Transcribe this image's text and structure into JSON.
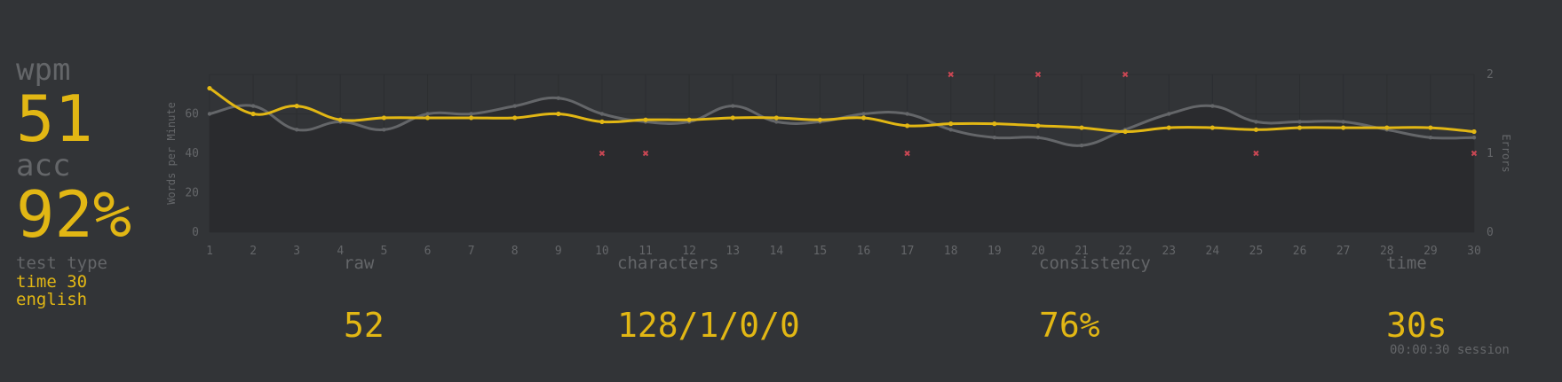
{
  "stats": {
    "wpm_label": "wpm",
    "wpm_value": "51",
    "acc_label": "acc",
    "acc_value": "92%"
  },
  "colors": {
    "background": "#323437",
    "sub": "#646669",
    "main": "#e2b714",
    "raw_line": "#646669",
    "error": "#ca4754"
  },
  "bottom": {
    "test_type_label": "test type",
    "test_type_line1": "time 30",
    "test_type_line2": "english",
    "raw_label": "raw",
    "raw_value": "52",
    "characters_label": "characters",
    "characters_value": "128/1/0/0",
    "consistency_label": "consistency",
    "consistency_value": "76%",
    "time_label": "time",
    "time_value": "30s",
    "session_value": "00:00:30 session"
  },
  "chart_data": {
    "type": "line",
    "x": [
      1,
      2,
      3,
      4,
      5,
      6,
      7,
      8,
      9,
      10,
      11,
      12,
      13,
      14,
      15,
      16,
      17,
      18,
      19,
      20,
      21,
      22,
      23,
      24,
      25,
      26,
      27,
      28,
      29,
      30
    ],
    "ylabel": "Words per Minute",
    "y2label": "Errors",
    "ylim": [
      0,
      80
    ],
    "y2lim": [
      0,
      2
    ],
    "yticks": [
      "0",
      "20",
      "40",
      "60"
    ],
    "y2ticks": [
      "0",
      "1",
      "2"
    ],
    "series": [
      {
        "values": [
          73,
          60,
          64,
          57,
          58,
          58,
          58,
          58,
          60,
          56,
          57,
          57,
          58,
          58,
          57,
          58,
          54,
          55,
          55,
          54,
          53,
          51,
          53,
          53,
          52,
          53,
          53,
          53,
          53,
          51
        ]
      },
      {
        "values": [
          60,
          64,
          52,
          56,
          52,
          60,
          60,
          64,
          68,
          60,
          56,
          56,
          64,
          56,
          56,
          60,
          60,
          52,
          48,
          48,
          44,
          52,
          60,
          64,
          56,
          56,
          56,
          52,
          48,
          48
        ]
      }
    ],
    "errors": [
      {
        "x": 10,
        "count": 1
      },
      {
        "x": 11,
        "count": 1
      },
      {
        "x": 17,
        "count": 1
      },
      {
        "x": 18,
        "count": 2
      },
      {
        "x": 20,
        "count": 2
      },
      {
        "x": 22,
        "count": 2
      },
      {
        "x": 25,
        "count": 1
      },
      {
        "x": 30,
        "count": 1
      }
    ]
  }
}
